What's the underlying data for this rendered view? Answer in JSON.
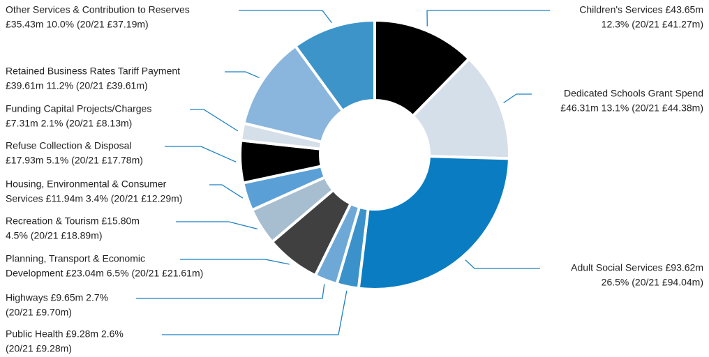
{
  "chart_data": {
    "type": "donut",
    "categories": [
      "Children's Services",
      "Dedicated Schools Grant Spend",
      "Adult Social Services",
      "Public Health",
      "Highways",
      "Planning, Transport & Economic Development",
      "Recreation & Tourism",
      "Housing, Environmental & Consumer Services",
      "Refuse Collection & Disposal",
      "Funding Capital Projects/Charges",
      "Retained Business Rates Tariff Payment",
      "Other Services & Contribution to Reserves"
    ],
    "values": [
      43.65,
      46.31,
      93.62,
      9.28,
      9.65,
      23.04,
      15.8,
      11.94,
      17.93,
      7.31,
      39.61,
      35.43
    ],
    "value_labels": [
      [
        "Children's Services £43.65m",
        "12.3% (20/21 £41.27m)"
      ],
      [
        "Dedicated Schools Grant Spend",
        "£46.31m 13.1% (20/21 £44.38m)"
      ],
      [
        "Adult Social Services £93.62m",
        "26.5% (20/21 £94.04m)"
      ],
      [
        "Public Health £9.28m 2.6%",
        "(20/21 £9.28m)"
      ],
      [
        "Highways £9.65m 2.7%",
        "(20/21 £9.70m)"
      ],
      [
        "Planning, Transport & Economic",
        "Development £23.04m 6.5% (20/21 £21.61m)"
      ],
      [
        "Recreation & Tourism £15.80m",
        "4.5% (20/21 £18.89m)"
      ],
      [
        "Housing, Environmental & Consumer",
        "Services £11.94m 3.4% (20/21 £12.29m)"
      ],
      [
        "Refuse Collection & Disposal",
        "£17.93m 5.1% (20/21 £17.78m)"
      ],
      [
        "Funding Capital Projects/Charges",
        "£7.31m 2.1% (20/21 £8.13m)"
      ],
      [
        "Retained Business Rates Tariff Payment",
        "£39.61m 11.2% (20/21 £39.61m)"
      ],
      [
        "Other Services & Contribution to Reserves",
        "£35.43m 10.0% (20/21 £37.19m)"
      ]
    ],
    "colors": [
      "#000000",
      "#d5dfea",
      "#0a7dc2",
      "#3b92cb",
      "#6ea8d7",
      "#404040",
      "#a7bed0",
      "#5aa0d6",
      "#000000",
      "#d5dfea",
      "#8ab5dd",
      "#3c94c9"
    ]
  }
}
